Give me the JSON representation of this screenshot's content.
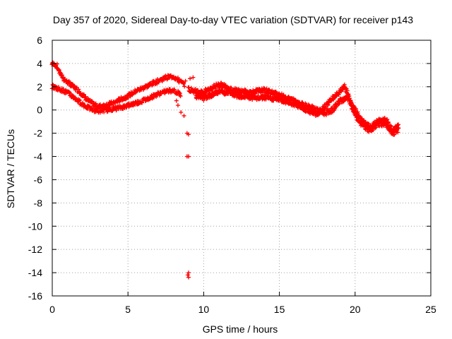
{
  "chart_data": {
    "type": "scatter",
    "title": "Day 357 of 2020, Sidereal Day-to-day VTEC variation (SDTVAR) for receiver p143",
    "xlabel": "GPS time / hours",
    "ylabel": "SDTVAR / TECUs",
    "xlim": [
      0,
      25
    ],
    "ylim": [
      -16,
      6
    ],
    "xticks": [
      0,
      5,
      10,
      15,
      20,
      25
    ],
    "yticks": [
      -16,
      -14,
      -12,
      -10,
      -8,
      -6,
      -4,
      -2,
      0,
      2,
      4,
      6
    ],
    "grid": true,
    "marker": "+",
    "color": "#ff0000",
    "series": [
      {
        "name": "SDTVAR",
        "trend_top": [
          [
            0.0,
            4.0
          ],
          [
            0.3,
            3.8
          ],
          [
            0.5,
            3.2
          ],
          [
            0.8,
            2.6
          ],
          [
            1.2,
            2.2
          ],
          [
            1.8,
            1.6
          ],
          [
            2.3,
            0.9
          ],
          [
            2.7,
            0.5
          ],
          [
            3.0,
            0.3
          ],
          [
            3.5,
            0.4
          ],
          [
            4.0,
            0.6
          ],
          [
            4.5,
            0.9
          ],
          [
            5.0,
            1.2
          ],
          [
            5.5,
            1.6
          ],
          [
            6.0,
            1.9
          ],
          [
            6.5,
            2.2
          ],
          [
            7.0,
            2.5
          ],
          [
            7.5,
            2.8
          ],
          [
            8.0,
            2.9
          ],
          [
            8.3,
            2.6
          ],
          [
            8.7,
            2.2
          ]
        ],
        "trend_bottom": [
          [
            0.0,
            2.0
          ],
          [
            0.5,
            1.8
          ],
          [
            1.0,
            1.5
          ],
          [
            1.5,
            1.0
          ],
          [
            2.0,
            0.5
          ],
          [
            2.5,
            0.1
          ],
          [
            3.0,
            -0.1
          ],
          [
            3.5,
            0.0
          ],
          [
            4.0,
            0.1
          ],
          [
            4.5,
            0.2
          ],
          [
            5.0,
            0.4
          ],
          [
            5.5,
            0.6
          ],
          [
            6.0,
            0.8
          ],
          [
            6.5,
            1.1
          ],
          [
            7.0,
            1.4
          ],
          [
            7.5,
            1.6
          ],
          [
            8.0,
            1.7
          ],
          [
            8.5,
            1.3
          ]
        ],
        "trend_band_b": [
          [
            9.0,
            1.8
          ],
          [
            9.5,
            1.6
          ],
          [
            10.0,
            1.5
          ],
          [
            10.5,
            1.9
          ],
          [
            11.0,
            2.2
          ],
          [
            11.5,
            2.0
          ],
          [
            12.0,
            1.7
          ],
          [
            12.5,
            1.6
          ],
          [
            13.0,
            1.5
          ],
          [
            13.5,
            1.6
          ],
          [
            14.0,
            1.7
          ],
          [
            14.5,
            1.5
          ],
          [
            15.0,
            1.3
          ],
          [
            15.5,
            1.0
          ],
          [
            16.0,
            0.8
          ],
          [
            16.5,
            0.5
          ],
          [
            17.0,
            0.3
          ],
          [
            17.5,
            0.0
          ],
          [
            18.0,
            -0.3
          ],
          [
            18.5,
            0.0
          ],
          [
            19.0,
            0.8
          ],
          [
            19.5,
            1.0
          ],
          [
            20.0,
            0.0
          ],
          [
            20.5,
            -1.0
          ],
          [
            21.0,
            -1.5
          ],
          [
            21.5,
            -1.0
          ],
          [
            22.0,
            -0.8
          ],
          [
            22.5,
            -1.8
          ],
          [
            22.9,
            -1.3
          ]
        ],
        "trend_band_a": [
          [
            9.5,
            1.2
          ],
          [
            10.0,
            1.0
          ],
          [
            10.5,
            1.3
          ],
          [
            11.0,
            1.6
          ],
          [
            11.5,
            1.5
          ],
          [
            12.0,
            1.3
          ],
          [
            12.5,
            1.2
          ],
          [
            13.0,
            1.1
          ],
          [
            13.5,
            1.0
          ],
          [
            14.0,
            1.1
          ],
          [
            14.5,
            1.0
          ],
          [
            15.0,
            0.9
          ],
          [
            15.5,
            0.7
          ],
          [
            16.0,
            0.5
          ],
          [
            16.5,
            0.2
          ],
          [
            17.0,
            -0.1
          ],
          [
            17.5,
            -0.4
          ],
          [
            18.0,
            0.3
          ],
          [
            18.5,
            1.0
          ],
          [
            19.0,
            1.6
          ],
          [
            19.3,
            2.0
          ],
          [
            19.5,
            1.5
          ],
          [
            20.0,
            -0.5
          ],
          [
            20.5,
            -1.3
          ],
          [
            21.0,
            -1.8
          ],
          [
            21.5,
            -1.2
          ],
          [
            22.0,
            -1.2
          ],
          [
            22.5,
            -2.0
          ],
          [
            22.9,
            -1.7
          ]
        ],
        "isolated_points": [
          [
            8.2,
            0.8
          ],
          [
            8.3,
            0.4
          ],
          [
            8.5,
            -0.2
          ],
          [
            8.7,
            -0.5
          ],
          [
            8.8,
            2.5
          ],
          [
            8.9,
            -2.0
          ],
          [
            9.0,
            -2.1
          ],
          [
            8.9,
            -4.0
          ],
          [
            9.0,
            -4.0
          ],
          [
            9.0,
            -14.0
          ],
          [
            8.95,
            -14.2
          ],
          [
            9.0,
            -14.4
          ],
          [
            9.3,
            2.8
          ],
          [
            9.1,
            2.7
          ]
        ]
      }
    ]
  }
}
